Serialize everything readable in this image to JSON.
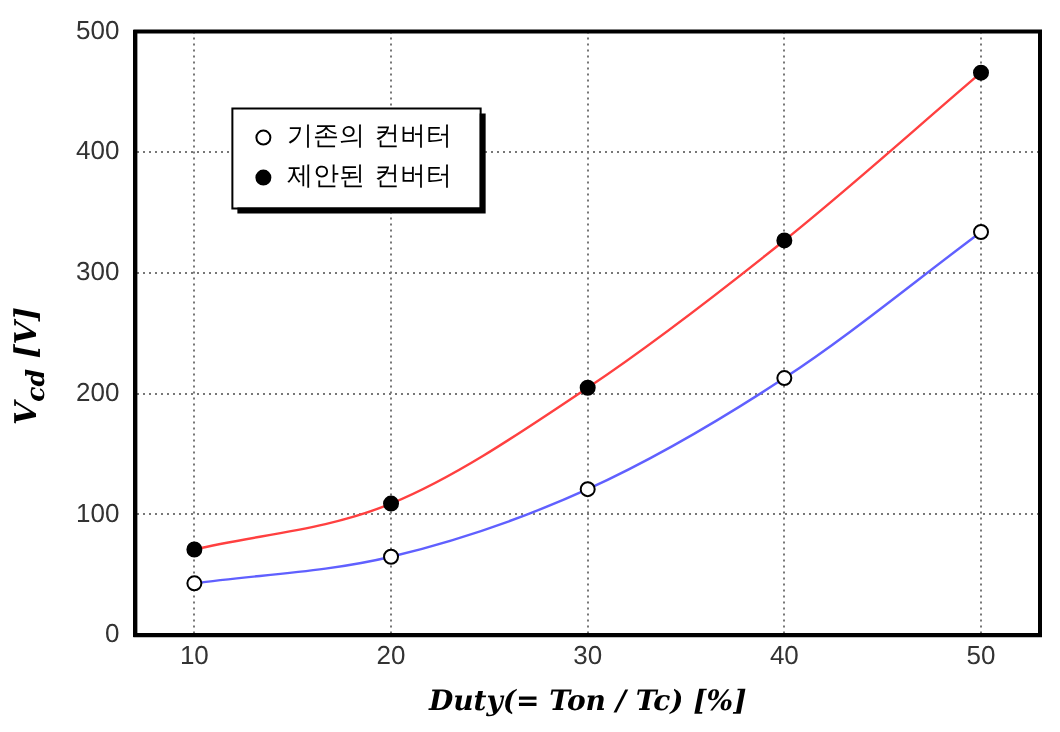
{
  "chart_data": {
    "type": "line",
    "xlabel": "Duty(= Ton / Tc) [%]",
    "ylabel": "V$_{cd}$ [V]",
    "x": [
      10,
      20,
      30,
      40,
      50
    ],
    "series": [
      {
        "name": "기존의 컨버터",
        "color": "#6060ff",
        "values": [
          43,
          65,
          121,
          213,
          334
        ]
      },
      {
        "name": "제안된 컨버터",
        "color": "#ff4040",
        "values": [
          71,
          109,
          205,
          327,
          466
        ]
      }
    ],
    "xlim": [
      7,
      53
    ],
    "xticks": [
      10,
      20,
      30,
      40,
      50
    ],
    "ylim": [
      0,
      500
    ],
    "yticks": [
      0,
      100,
      200,
      300,
      400,
      500
    ],
    "grid": true,
    "legend": "top left",
    "marker": "circle"
  }
}
